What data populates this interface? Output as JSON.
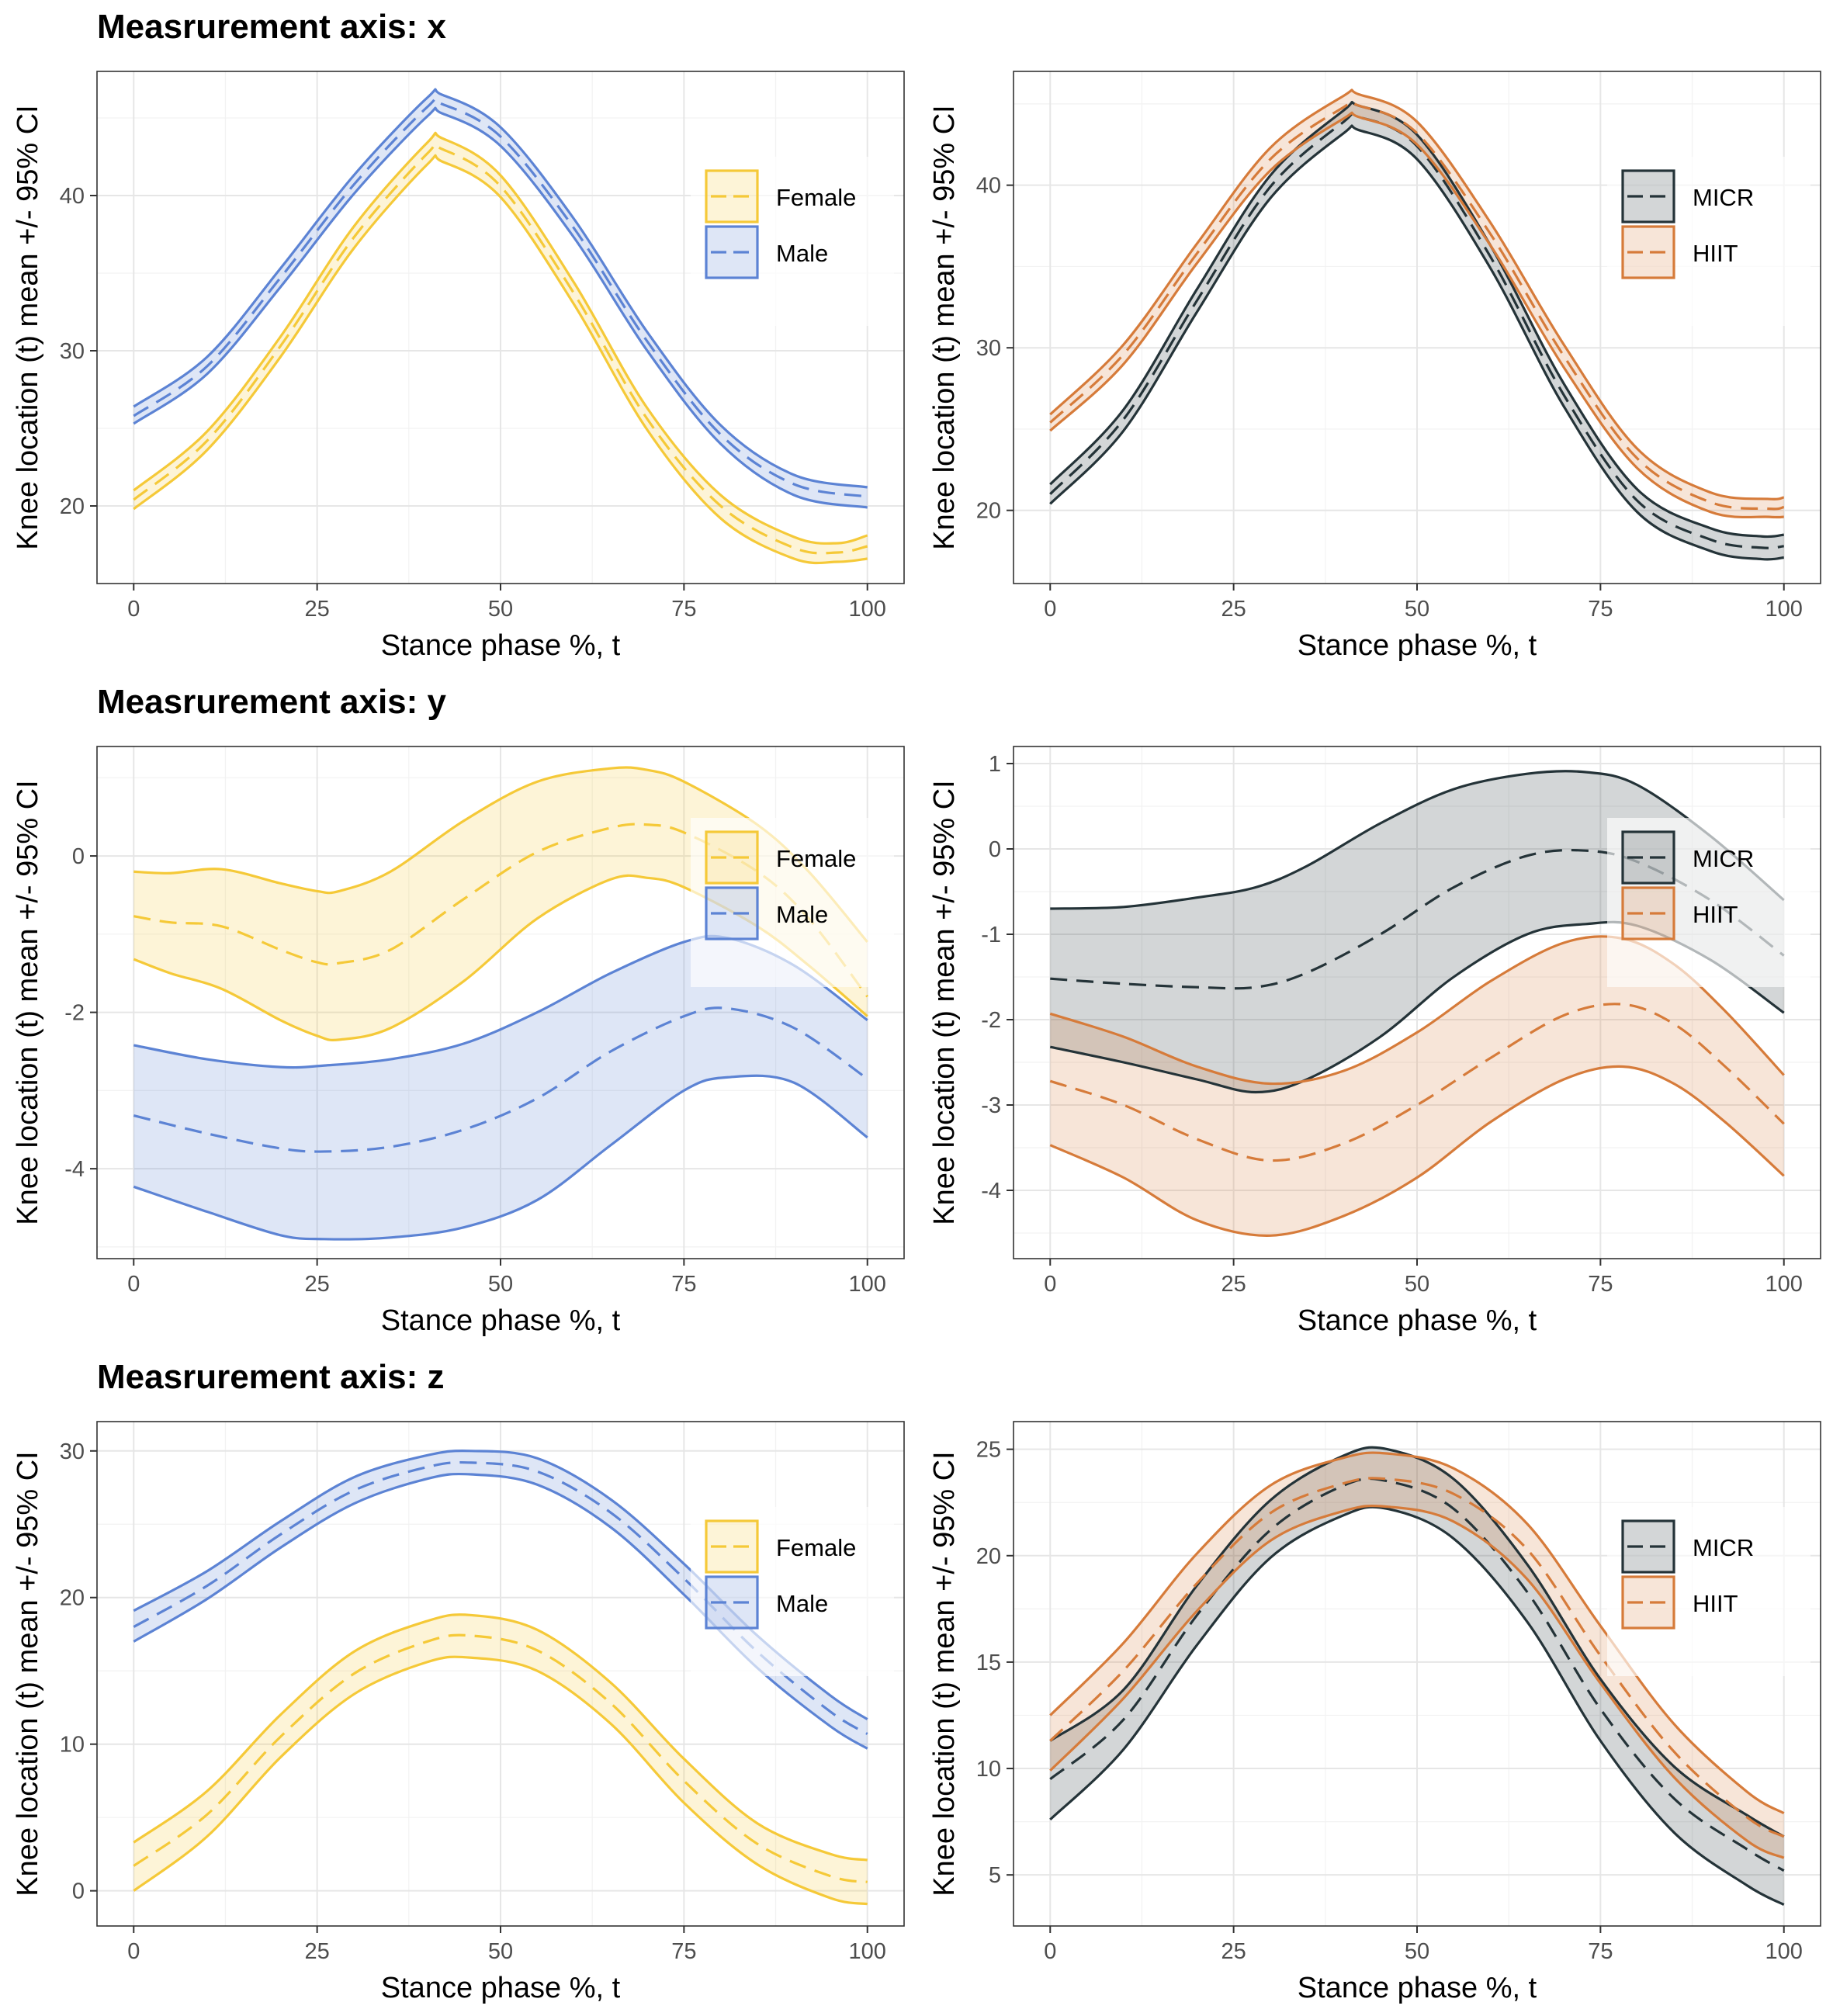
{
  "row_titles": [
    "Measrurement axis: x",
    "Measrurement axis: y",
    "Measrurement axis: z"
  ],
  "colors": {
    "Female": "#F5C938",
    "Male": "#5C83D4",
    "MICR": "#243338",
    "HIIT": "#D67B3A"
  },
  "chart_data": [
    {
      "type": "line",
      "row": 0,
      "col": 0,
      "title": "",
      "xlabel": "Stance phase %, t",
      "ylabel": "Knee location (t) mean +/- 95% CI",
      "xlim": [
        -5,
        105
      ],
      "ylim": [
        15.0,
        48.0
      ],
      "xticks": [
        0,
        25,
        50,
        75,
        100
      ],
      "yticks": [
        20,
        30,
        40
      ],
      "grid": true,
      "legend_position": "right",
      "band": "ci",
      "series": [
        {
          "name": "Female",
          "color": "Female",
          "x": [
            0,
            10,
            20,
            30,
            40,
            42,
            50,
            60,
            70,
            80,
            90,
            96,
            100
          ],
          "mean": [
            20.4,
            24.2,
            30.3,
            37.3,
            42.7,
            43.0,
            40.6,
            33.7,
            25.6,
            20.0,
            17.3,
            17.0,
            17.4
          ],
          "lower": [
            19.8,
            23.6,
            29.6,
            36.6,
            42.0,
            42.2,
            39.9,
            33.0,
            24.9,
            19.2,
            16.6,
            16.4,
            16.6
          ],
          "upper": [
            21.0,
            24.8,
            30.9,
            38.0,
            43.4,
            43.7,
            41.3,
            34.4,
            26.3,
            20.7,
            18.0,
            17.6,
            18.1
          ]
        },
        {
          "name": "Male",
          "color": "Male",
          "x": [
            0,
            10,
            20,
            30,
            40,
            42,
            50,
            60,
            70,
            80,
            90,
            100
          ],
          "mean": [
            25.8,
            29.0,
            34.7,
            40.7,
            45.7,
            45.9,
            43.8,
            37.9,
            30.6,
            24.6,
            21.4,
            20.6
          ],
          "lower": [
            25.3,
            28.5,
            34.1,
            40.1,
            45.1,
            45.3,
            43.2,
            37.3,
            30.0,
            24.0,
            20.7,
            19.9
          ],
          "upper": [
            26.4,
            29.6,
            35.3,
            41.3,
            46.3,
            46.5,
            44.4,
            38.5,
            31.2,
            25.2,
            22.0,
            21.2
          ]
        }
      ]
    },
    {
      "type": "line",
      "row": 0,
      "col": 1,
      "title": "",
      "xlabel": "Stance phase %, t",
      "ylabel": "Knee location (t) mean +/- 95% CI",
      "xlim": [
        -5,
        105
      ],
      "ylim": [
        15.5,
        47.0
      ],
      "xticks": [
        0,
        25,
        50,
        75,
        100
      ],
      "yticks": [
        20,
        30,
        40
      ],
      "grid": true,
      "legend_position": "right",
      "band": "ci",
      "series": [
        {
          "name": "MICR",
          "color": "MICR",
          "x": [
            0,
            10,
            20,
            30,
            40,
            42,
            50,
            60,
            70,
            80,
            90,
            97,
            100
          ],
          "mean": [
            21.0,
            25.6,
            32.9,
            39.9,
            43.9,
            44.2,
            42.4,
            35.6,
            27.1,
            20.6,
            18.2,
            17.7,
            17.8
          ],
          "lower": [
            20.4,
            24.9,
            32.2,
            39.2,
            43.2,
            43.4,
            41.6,
            34.9,
            26.4,
            19.9,
            17.5,
            17.0,
            17.1
          ],
          "upper": [
            21.6,
            26.2,
            33.6,
            40.6,
            44.6,
            44.9,
            43.1,
            36.3,
            27.8,
            21.3,
            18.9,
            18.4,
            18.5
          ]
        },
        {
          "name": "HIIT",
          "color": "HIIT",
          "x": [
            0,
            10,
            20,
            30,
            40,
            42,
            50,
            60,
            70,
            80,
            90,
            98,
            100
          ],
          "mean": [
            25.4,
            29.6,
            35.8,
            41.6,
            44.8,
            44.9,
            43.2,
            37.0,
            29.5,
            23.2,
            20.5,
            20.1,
            20.2
          ],
          "lower": [
            24.9,
            29.0,
            35.2,
            40.9,
            44.1,
            44.2,
            42.5,
            36.3,
            28.8,
            22.6,
            19.9,
            19.6,
            19.6
          ],
          "upper": [
            25.9,
            30.2,
            36.4,
            42.3,
            45.5,
            45.6,
            43.9,
            37.7,
            30.2,
            23.8,
            21.1,
            20.7,
            20.8
          ]
        }
      ]
    },
    {
      "type": "line",
      "row": 1,
      "col": 0,
      "title": "",
      "xlabel": "Stance phase %, t",
      "ylabel": "Knee location (t) mean +/- 95% CI",
      "xlim": [
        -5,
        105
      ],
      "ylim": [
        -5.15,
        1.4
      ],
      "xticks": [
        0,
        25,
        50,
        75,
        100
      ],
      "yticks": [
        -4,
        -2,
        0
      ],
      "grid": true,
      "legend_position": "right",
      "band": "ci",
      "series": [
        {
          "name": "Female",
          "color": "Female",
          "x": [
            0,
            5,
            12,
            20,
            25,
            28,
            35,
            45,
            55,
            65,
            70,
            75,
            85,
            92,
            100
          ],
          "mean": [
            -0.77,
            -0.85,
            -0.9,
            -1.2,
            -1.36,
            -1.37,
            -1.2,
            -0.55,
            0.05,
            0.36,
            0.4,
            0.3,
            -0.2,
            -0.8,
            -1.8
          ],
          "lower": [
            -1.32,
            -1.5,
            -1.7,
            -2.1,
            -2.3,
            -2.35,
            -2.2,
            -1.6,
            -0.8,
            -0.3,
            -0.28,
            -0.4,
            -0.9,
            -1.4,
            -2.05
          ],
          "upper": [
            -0.2,
            -0.22,
            -0.17,
            -0.35,
            -0.45,
            -0.45,
            -0.2,
            0.45,
            0.95,
            1.12,
            1.1,
            0.95,
            0.4,
            -0.2,
            -1.1
          ]
        },
        {
          "name": "Male",
          "color": "Male",
          "x": [
            0,
            10,
            20,
            26,
            35,
            45,
            55,
            65,
            75,
            81,
            90,
            100
          ],
          "mean": [
            -3.32,
            -3.55,
            -3.74,
            -3.78,
            -3.72,
            -3.5,
            -3.1,
            -2.5,
            -2.05,
            -1.95,
            -2.2,
            -2.85
          ],
          "lower": [
            -4.23,
            -4.55,
            -4.85,
            -4.9,
            -4.88,
            -4.75,
            -4.4,
            -3.7,
            -3.0,
            -2.83,
            -2.9,
            -3.6
          ],
          "upper": [
            -2.42,
            -2.6,
            -2.7,
            -2.68,
            -2.6,
            -2.4,
            -2.0,
            -1.5,
            -1.1,
            -1.05,
            -1.4,
            -2.1
          ]
        }
      ]
    },
    {
      "type": "line",
      "row": 1,
      "col": 1,
      "title": "",
      "xlabel": "Stance phase %, t",
      "ylabel": "Knee location (t) mean +/- 95% CI",
      "xlim": [
        -5,
        105
      ],
      "ylim": [
        -4.8,
        1.2
      ],
      "xticks": [
        0,
        25,
        50,
        75,
        100
      ],
      "yticks": [
        -4,
        -3,
        -2,
        -1,
        0,
        1
      ],
      "grid": true,
      "legend_position": "right",
      "band": "ci",
      "series": [
        {
          "name": "MICR",
          "color": "MICR",
          "x": [
            0,
            10,
            20,
            28,
            35,
            45,
            55,
            65,
            73,
            80,
            90,
            100
          ],
          "mean": [
            -1.52,
            -1.58,
            -1.62,
            -1.62,
            -1.45,
            -1.0,
            -0.45,
            -0.08,
            -0.02,
            -0.15,
            -0.6,
            -1.25
          ],
          "lower": [
            -2.32,
            -2.5,
            -2.7,
            -2.85,
            -2.7,
            -2.2,
            -1.5,
            -1.0,
            -0.88,
            -0.9,
            -1.3,
            -1.92
          ],
          "upper": [
            -0.7,
            -0.68,
            -0.57,
            -0.45,
            -0.2,
            0.3,
            0.7,
            0.88,
            0.9,
            0.75,
            0.15,
            -0.6
          ]
        },
        {
          "name": "HIIT",
          "color": "HIIT",
          "x": [
            0,
            10,
            20,
            30,
            40,
            50,
            60,
            70,
            78,
            85,
            92,
            100
          ],
          "mean": [
            -2.72,
            -3.0,
            -3.4,
            -3.65,
            -3.45,
            -3.0,
            -2.45,
            -1.95,
            -1.82,
            -2.05,
            -2.55,
            -3.22
          ],
          "lower": [
            -3.47,
            -3.85,
            -4.35,
            -4.53,
            -4.3,
            -3.85,
            -3.2,
            -2.7,
            -2.55,
            -2.75,
            -3.2,
            -3.83
          ],
          "upper": [
            -1.93,
            -2.2,
            -2.55,
            -2.75,
            -2.6,
            -2.15,
            -1.55,
            -1.1,
            -1.05,
            -1.35,
            -1.9,
            -2.65
          ]
        }
      ]
    },
    {
      "type": "line",
      "row": 2,
      "col": 0,
      "title": "",
      "xlabel": "Stance phase %, t",
      "ylabel": "Knee location (t) mean +/- 95% CI",
      "xlim": [
        -5,
        105
      ],
      "ylim": [
        -2.4,
        32.0
      ],
      "xticks": [
        0,
        25,
        50,
        75,
        100
      ],
      "yticks": [
        0,
        10,
        20,
        30
      ],
      "grid": true,
      "legend_position": "right",
      "band": "ci",
      "series": [
        {
          "name": "Female",
          "color": "Female",
          "x": [
            0,
            10,
            20,
            30,
            40,
            46,
            55,
            65,
            75,
            85,
            95,
            100
          ],
          "mean": [
            1.7,
            5.2,
            10.5,
            14.8,
            17.0,
            17.4,
            16.4,
            12.8,
            7.5,
            3.2,
            1.0,
            0.6
          ],
          "lower": [
            0.0,
            3.7,
            9.1,
            13.4,
            15.6,
            15.9,
            15.0,
            11.4,
            6.0,
            1.8,
            -0.5,
            -0.9
          ],
          "upper": [
            3.3,
            6.8,
            12.0,
            16.3,
            18.4,
            18.8,
            17.8,
            14.2,
            9.0,
            4.6,
            2.5,
            2.1
          ]
        },
        {
          "name": "Male",
          "color": "Male",
          "x": [
            0,
            10,
            20,
            30,
            40,
            46,
            55,
            65,
            75,
            85,
            95,
            100
          ],
          "mean": [
            18.0,
            20.8,
            24.3,
            27.3,
            28.9,
            29.2,
            28.6,
            25.8,
            21.3,
            16.3,
            12.2,
            10.7
          ],
          "lower": [
            17.0,
            19.9,
            23.4,
            26.4,
            28.1,
            28.4,
            27.7,
            24.8,
            20.2,
            15.2,
            11.2,
            9.7
          ],
          "upper": [
            19.1,
            21.8,
            25.2,
            28.2,
            29.7,
            30.0,
            29.5,
            26.7,
            22.3,
            17.4,
            13.3,
            11.7
          ]
        }
      ]
    },
    {
      "type": "line",
      "row": 2,
      "col": 1,
      "title": "",
      "xlabel": "Stance phase %, t",
      "ylabel": "Knee location (t) mean +/- 95% CI",
      "xlim": [
        -5,
        105
      ],
      "ylim": [
        2.6,
        26.3
      ],
      "xticks": [
        0,
        25,
        50,
        75,
        100
      ],
      "yticks": [
        5,
        10,
        15,
        20,
        25
      ],
      "grid": true,
      "legend_position": "right",
      "band": "ci",
      "series": [
        {
          "name": "MICR",
          "color": "MICR",
          "x": [
            0,
            10,
            20,
            30,
            40,
            46,
            55,
            65,
            75,
            85,
            95,
            100
          ],
          "mean": [
            9.5,
            12.3,
            17.2,
            21.2,
            23.3,
            23.5,
            22.2,
            18.3,
            12.8,
            8.6,
            6.2,
            5.2
          ],
          "lower": [
            7.6,
            10.9,
            15.8,
            19.9,
            21.9,
            22.2,
            20.8,
            16.9,
            11.3,
            7.0,
            4.5,
            3.6
          ],
          "upper": [
            11.3,
            13.7,
            18.6,
            22.6,
            24.7,
            25.0,
            23.6,
            19.6,
            14.2,
            10.1,
            7.8,
            6.8
          ]
        },
        {
          "name": "HIIT",
          "color": "HIIT",
          "x": [
            0,
            10,
            20,
            30,
            40,
            46,
            55,
            65,
            75,
            85,
            95,
            100
          ],
          "mean": [
            11.3,
            14.6,
            18.7,
            22.0,
            23.4,
            23.6,
            22.9,
            20.3,
            15.3,
            10.8,
            7.7,
            6.8
          ],
          "lower": [
            9.9,
            13.3,
            17.4,
            20.7,
            22.1,
            22.3,
            21.6,
            18.9,
            14.0,
            9.6,
            6.6,
            5.8
          ],
          "upper": [
            12.5,
            15.9,
            20.1,
            23.3,
            24.6,
            24.8,
            24.1,
            21.5,
            16.7,
            12.1,
            8.9,
            7.9
          ]
        }
      ]
    }
  ]
}
